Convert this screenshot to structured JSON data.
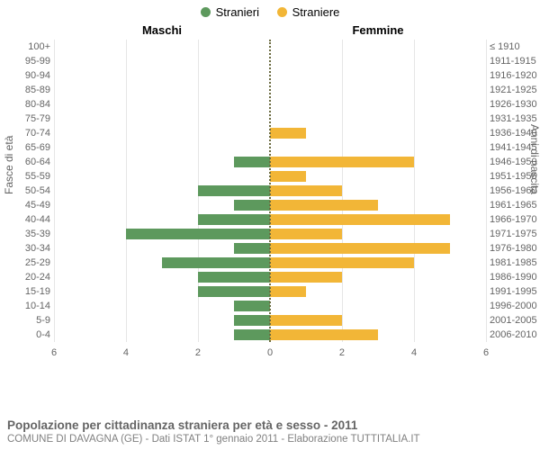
{
  "legend": {
    "male_label": "Stranieri",
    "female_label": "Straniere"
  },
  "top_headers": {
    "male": "Maschi",
    "female": "Femmine"
  },
  "axis_titles": {
    "left": "Fasce di età",
    "right": "Anni di nascita"
  },
  "chart": {
    "type": "population-pyramid",
    "male_color": "#5d995d",
    "female_color": "#f2b637",
    "grid_color": "#e5e5e5",
    "centerline_color": "#6b6b40",
    "background_color": "#ffffff",
    "text_color": "#656565",
    "xmax": 6,
    "xtick_step": 2,
    "xticks_left": [
      6,
      4,
      2,
      0
    ],
    "xticks_right": [
      2,
      4,
      6
    ],
    "label_fontsize": 11,
    "rows": [
      {
        "age": "100+",
        "birth": "≤ 1910",
        "m": 0,
        "f": 0
      },
      {
        "age": "95-99",
        "birth": "1911-1915",
        "m": 0,
        "f": 0
      },
      {
        "age": "90-94",
        "birth": "1916-1920",
        "m": 0,
        "f": 0
      },
      {
        "age": "85-89",
        "birth": "1921-1925",
        "m": 0,
        "f": 0
      },
      {
        "age": "80-84",
        "birth": "1926-1930",
        "m": 0,
        "f": 0
      },
      {
        "age": "75-79",
        "birth": "1931-1935",
        "m": 0,
        "f": 0
      },
      {
        "age": "70-74",
        "birth": "1936-1940",
        "m": 0,
        "f": 1
      },
      {
        "age": "65-69",
        "birth": "1941-1945",
        "m": 0,
        "f": 0
      },
      {
        "age": "60-64",
        "birth": "1946-1950",
        "m": 1,
        "f": 4
      },
      {
        "age": "55-59",
        "birth": "1951-1955",
        "m": 0,
        "f": 1
      },
      {
        "age": "50-54",
        "birth": "1956-1960",
        "m": 2,
        "f": 2
      },
      {
        "age": "45-49",
        "birth": "1961-1965",
        "m": 1,
        "f": 3
      },
      {
        "age": "40-44",
        "birth": "1966-1970",
        "m": 2,
        "f": 5
      },
      {
        "age": "35-39",
        "birth": "1971-1975",
        "m": 4,
        "f": 2
      },
      {
        "age": "30-34",
        "birth": "1976-1980",
        "m": 1,
        "f": 5
      },
      {
        "age": "25-29",
        "birth": "1981-1985",
        "m": 3,
        "f": 4
      },
      {
        "age": "20-24",
        "birth": "1986-1990",
        "m": 2,
        "f": 2
      },
      {
        "age": "15-19",
        "birth": "1991-1995",
        "m": 2,
        "f": 1
      },
      {
        "age": "10-14",
        "birth": "1996-2000",
        "m": 1,
        "f": 0
      },
      {
        "age": "5-9",
        "birth": "2001-2005",
        "m": 1,
        "f": 2
      },
      {
        "age": "0-4",
        "birth": "2006-2010",
        "m": 1,
        "f": 3
      }
    ]
  },
  "footer": {
    "title": "Popolazione per cittadinanza straniera per età e sesso - 2011",
    "subtitle": "COMUNE DI DAVAGNA (GE) - Dati ISTAT 1° gennaio 2011 - Elaborazione TUTTITALIA.IT"
  }
}
